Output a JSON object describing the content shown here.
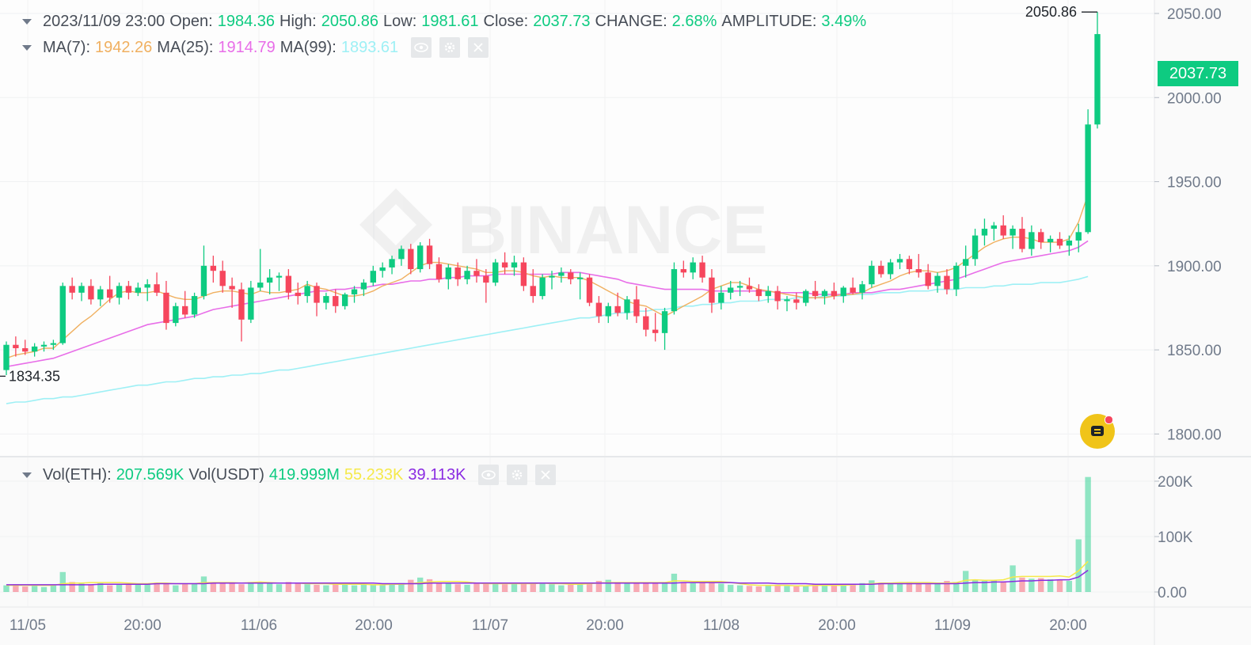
{
  "brand_watermark": "BINANCE",
  "ohlc": {
    "datetime": "2023/11/09 23:00",
    "open_label": "Open:",
    "open": "1984.36",
    "high_label": "High:",
    "high": "2050.86",
    "low_label": "Low:",
    "low": "1981.61",
    "close_label": "Close:",
    "close": "2037.73",
    "change_label": "CHANGE:",
    "change": "2.68%",
    "amp_label": "AMPLITUDE:",
    "amp": "3.49%"
  },
  "ma": {
    "ma7_label": "MA(7):",
    "ma7": "1942.26",
    "ma25_label": "MA(25):",
    "ma25": "1914.79",
    "ma99_label": "MA(99):",
    "ma99": "1893.61"
  },
  "vol": {
    "eth_label": "Vol(ETH):",
    "eth": "207.569K",
    "usdt_label": "Vol(USDT)",
    "usdt": "419.999M",
    "ma1": "55.233K",
    "ma2": "39.113K"
  },
  "markers": {
    "high_label": "2050.86",
    "low_label": "1834.35",
    "last_price": "2037.73"
  },
  "colors": {
    "up": "#0ecb81",
    "down": "#f6465d",
    "ma7": "#f0b060",
    "ma25": "#e86ee8",
    "ma99": "#9ef0f5",
    "vol_ma1": "#f5e94a",
    "vol_ma2": "#8a2be2"
  },
  "icons": [
    "eye-icon",
    "gear-icon",
    "close-icon",
    "chat-icon"
  ],
  "chart_data": {
    "type": "candlestick",
    "price_ticks": [
      "2050.00",
      "2000.00",
      "1950.00",
      "1900.00",
      "1850.00",
      "1800.00"
    ],
    "volume_ticks": [
      "200K",
      "100K",
      "0.00"
    ],
    "x_ticks": [
      "11/05",
      "20:00",
      "11/06",
      "20:00",
      "11/07",
      "20:00",
      "11/08",
      "20:00",
      "11/09",
      "20:00"
    ],
    "price_range": [
      1787,
      2058
    ],
    "volume_range": [
      0,
      230000
    ],
    "candles_ohlc": [
      [
        1838,
        1855,
        1835,
        1853
      ],
      [
        1853,
        1858,
        1846,
        1851
      ],
      [
        1851,
        1856,
        1847,
        1849
      ],
      [
        1849,
        1854,
        1846,
        1852
      ],
      [
        1852,
        1855,
        1849,
        1853
      ],
      [
        1853,
        1856,
        1850,
        1854
      ],
      [
        1854,
        1890,
        1853,
        1888
      ],
      [
        1888,
        1893,
        1880,
        1884
      ],
      [
        1884,
        1890,
        1879,
        1888
      ],
      [
        1888,
        1892,
        1877,
        1880
      ],
      [
        1880,
        1888,
        1876,
        1886
      ],
      [
        1886,
        1894,
        1878,
        1881
      ],
      [
        1881,
        1890,
        1877,
        1888
      ],
      [
        1888,
        1891,
        1880,
        1884
      ],
      [
        1884,
        1890,
        1882,
        1887
      ],
      [
        1887,
        1892,
        1879,
        1889
      ],
      [
        1889,
        1896,
        1882,
        1884
      ],
      [
        1884,
        1891,
        1862,
        1866
      ],
      [
        1866,
        1878,
        1864,
        1876
      ],
      [
        1876,
        1885,
        1869,
        1871
      ],
      [
        1871,
        1884,
        1869,
        1882
      ],
      [
        1882,
        1912,
        1880,
        1900
      ],
      [
        1900,
        1906,
        1890,
        1897
      ],
      [
        1897,
        1903,
        1884,
        1888
      ],
      [
        1888,
        1893,
        1875,
        1886
      ],
      [
        1886,
        1890,
        1855,
        1868
      ],
      [
        1868,
        1891,
        1866,
        1887
      ],
      [
        1887,
        1910,
        1885,
        1890
      ],
      [
        1890,
        1898,
        1883,
        1893
      ],
      [
        1893,
        1896,
        1885,
        1894
      ],
      [
        1894,
        1898,
        1880,
        1884
      ],
      [
        1884,
        1890,
        1877,
        1882
      ],
      [
        1882,
        1891,
        1878,
        1888
      ],
      [
        1888,
        1890,
        1870,
        1878
      ],
      [
        1878,
        1884,
        1874,
        1882
      ],
      [
        1882,
        1886,
        1872,
        1876
      ],
      [
        1876,
        1884,
        1874,
        1883
      ],
      [
        1883,
        1888,
        1878,
        1886
      ],
      [
        1886,
        1892,
        1882,
        1890
      ],
      [
        1890,
        1900,
        1888,
        1897
      ],
      [
        1897,
        1902,
        1893,
        1899
      ],
      [
        1899,
        1906,
        1895,
        1904
      ],
      [
        1904,
        1912,
        1900,
        1910
      ],
      [
        1910,
        1913,
        1895,
        1898
      ],
      [
        1898,
        1914,
        1896,
        1912
      ],
      [
        1912,
        1916,
        1898,
        1901
      ],
      [
        1901,
        1905,
        1890,
        1892
      ],
      [
        1892,
        1901,
        1886,
        1899
      ],
      [
        1899,
        1902,
        1888,
        1892
      ],
      [
        1892,
        1900,
        1889,
        1897
      ],
      [
        1897,
        1904,
        1890,
        1894
      ],
      [
        1894,
        1898,
        1878,
        1890
      ],
      [
        1890,
        1904,
        1888,
        1902
      ],
      [
        1902,
        1908,
        1895,
        1899
      ],
      [
        1899,
        1906,
        1894,
        1902
      ],
      [
        1902,
        1905,
        1885,
        1888
      ],
      [
        1888,
        1898,
        1878,
        1882
      ],
      [
        1882,
        1895,
        1880,
        1893
      ],
      [
        1893,
        1897,
        1886,
        1894
      ],
      [
        1894,
        1899,
        1890,
        1896
      ],
      [
        1896,
        1898,
        1889,
        1892
      ],
      [
        1892,
        1896,
        1880,
        1893
      ],
      [
        1893,
        1895,
        1876,
        1878
      ],
      [
        1878,
        1882,
        1866,
        1870
      ],
      [
        1870,
        1878,
        1866,
        1876
      ],
      [
        1876,
        1884,
        1870,
        1872
      ],
      [
        1872,
        1882,
        1868,
        1880
      ],
      [
        1880,
        1888,
        1866,
        1870
      ],
      [
        1870,
        1875,
        1858,
        1862
      ],
      [
        1862,
        1872,
        1855,
        1860
      ],
      [
        1860,
        1875,
        1850,
        1873
      ],
      [
        1873,
        1902,
        1871,
        1898
      ],
      [
        1898,
        1903,
        1893,
        1896
      ],
      [
        1896,
        1905,
        1892,
        1902
      ],
      [
        1902,
        1906,
        1890,
        1893
      ],
      [
        1893,
        1898,
        1872,
        1878
      ],
      [
        1878,
        1888,
        1874,
        1884
      ],
      [
        1884,
        1891,
        1880,
        1887
      ],
      [
        1887,
        1891,
        1882,
        1888
      ],
      [
        1888,
        1893,
        1884,
        1886
      ],
      [
        1886,
        1889,
        1879,
        1882
      ],
      [
        1882,
        1888,
        1878,
        1885
      ],
      [
        1885,
        1888,
        1874,
        1879
      ],
      [
        1879,
        1882,
        1873,
        1880
      ],
      [
        1880,
        1884,
        1874,
        1878
      ],
      [
        1878,
        1886,
        1876,
        1885
      ],
      [
        1885,
        1891,
        1880,
        1882
      ],
      [
        1882,
        1886,
        1877,
        1885
      ],
      [
        1885,
        1890,
        1880,
        1882
      ],
      [
        1882,
        1888,
        1878,
        1887
      ],
      [
        1887,
        1893,
        1883,
        1884
      ],
      [
        1884,
        1891,
        1880,
        1889
      ],
      [
        1889,
        1903,
        1887,
        1900
      ],
      [
        1900,
        1903,
        1893,
        1895
      ],
      [
        1895,
        1904,
        1892,
        1902
      ],
      [
        1902,
        1907,
        1898,
        1904
      ],
      [
        1904,
        1906,
        1895,
        1898
      ],
      [
        1898,
        1907,
        1893,
        1896
      ],
      [
        1896,
        1901,
        1886,
        1888
      ],
      [
        1888,
        1896,
        1884,
        1894
      ],
      [
        1894,
        1898,
        1883,
        1886
      ],
      [
        1886,
        1902,
        1882,
        1900
      ],
      [
        1900,
        1912,
        1893,
        1904
      ],
      [
        1904,
        1922,
        1900,
        1918
      ],
      [
        1918,
        1928,
        1912,
        1922
      ],
      [
        1922,
        1926,
        1915,
        1924
      ],
      [
        1924,
        1930,
        1916,
        1918
      ],
      [
        1918,
        1924,
        1910,
        1922
      ],
      [
        1922,
        1929,
        1908,
        1910
      ],
      [
        1910,
        1924,
        1906,
        1920
      ],
      [
        1920,
        1922,
        1910,
        1914
      ],
      [
        1914,
        1918,
        1908,
        1916
      ],
      [
        1916,
        1920,
        1910,
        1912
      ],
      [
        1912,
        1918,
        1906,
        1915
      ],
      [
        1915,
        1925,
        1908,
        1920
      ],
      [
        1920,
        1993,
        1919,
        1984
      ],
      [
        1984,
        2050.86,
        1981.61,
        2037.73
      ]
    ],
    "volumes_k": [
      12,
      14,
      10,
      11,
      9,
      12,
      36,
      18,
      15,
      14,
      16,
      12,
      14,
      13,
      15,
      14,
      17,
      16,
      12,
      14,
      15,
      28,
      17,
      15,
      16,
      14,
      18,
      16,
      15,
      14,
      18,
      16,
      14,
      13,
      12,
      14,
      15,
      12,
      13,
      14,
      13,
      15,
      16,
      22,
      26,
      23,
      16,
      15,
      14,
      13,
      15,
      17,
      16,
      14,
      15,
      16,
      17,
      15,
      14,
      12,
      13,
      15,
      16,
      20,
      22,
      18,
      16,
      17,
      15,
      16,
      18,
      33,
      18,
      16,
      18,
      17,
      15,
      13,
      12,
      11,
      10,
      12,
      13,
      11,
      10,
      12,
      14,
      13,
      12,
      14,
      15,
      16,
      21,
      17,
      15,
      16,
      18,
      15,
      14,
      16,
      20,
      18,
      38,
      22,
      20,
      22,
      19,
      48,
      26,
      24,
      25,
      23,
      22,
      20,
      95,
      207.569
    ],
    "ma7": [
      1845,
      1847,
      1848,
      1849,
      1851,
      1851,
      1856,
      1861,
      1866,
      1870,
      1875,
      1880,
      1884,
      1885,
      1884,
      1884,
      1885,
      1883,
      1881,
      1880,
      1880,
      1882,
      1884,
      1885,
      1885,
      1884,
      1883,
      1885,
      1884,
      1884,
      1885,
      1886,
      1889,
      1887,
      1886,
      1884,
      1882,
      1882,
      1883,
      1885,
      1888,
      1890,
      1892,
      1896,
      1900,
      1902,
      1902,
      1901,
      1900,
      1899,
      1898,
      1896,
      1896,
      1897,
      1897,
      1896,
      1894,
      1893,
      1894,
      1893,
      1893,
      1893,
      1891,
      1888,
      1885,
      1882,
      1879,
      1877,
      1876,
      1873,
      1870,
      1873,
      1876,
      1879,
      1882,
      1886,
      1888,
      1890,
      1890,
      1888,
      1886,
      1885,
      1884,
      1883,
      1882,
      1881,
      1881,
      1881,
      1882,
      1883,
      1883,
      1884,
      1887,
      1889,
      1891,
      1894,
      1896,
      1897,
      1897,
      1896,
      1897,
      1899,
      1903,
      1907,
      1911,
      1914,
      1916,
      1917,
      1917,
      1916,
      1914,
      1914,
      1914,
      1916,
      1926,
      1942.26
    ],
    "ma25": [
      1840,
      1841,
      1842,
      1843,
      1844,
      1845,
      1847,
      1849,
      1851,
      1853,
      1855,
      1857,
      1859,
      1861,
      1863,
      1865,
      1866,
      1867,
      1868,
      1869,
      1870,
      1872,
      1874,
      1875,
      1876,
      1877,
      1878,
      1879,
      1880,
      1881,
      1882,
      1883,
      1884,
      1885,
      1885,
      1886,
      1886,
      1887,
      1887,
      1888,
      1889,
      1889,
      1890,
      1891,
      1891,
      1892,
      1892,
      1893,
      1893,
      1894,
      1894,
      1894,
      1895,
      1895,
      1895,
      1895,
      1895,
      1895,
      1895,
      1896,
      1896,
      1896,
      1895,
      1894,
      1893,
      1892,
      1890,
      1889,
      1888,
      1887,
      1886,
      1886,
      1886,
      1886,
      1886,
      1885,
      1885,
      1885,
      1885,
      1885,
      1885,
      1885,
      1884,
      1884,
      1884,
      1884,
      1883,
      1883,
      1883,
      1883,
      1884,
      1884,
      1884,
      1885,
      1886,
      1886,
      1887,
      1888,
      1889,
      1890,
      1891,
      1892,
      1894,
      1896,
      1898,
      1900,
      1902,
      1903,
      1904,
      1905,
      1906,
      1907,
      1908,
      1909,
      1911,
      1914.79
    ],
    "ma99": [
      1818,
      1819,
      1819,
      1820,
      1821,
      1821,
      1822,
      1822,
      1823,
      1824,
      1825,
      1826,
      1827,
      1828,
      1829,
      1829,
      1830,
      1831,
      1831,
      1832,
      1833,
      1833,
      1834,
      1834,
      1835,
      1835,
      1836,
      1836,
      1837,
      1838,
      1838,
      1839,
      1840,
      1841,
      1842,
      1843,
      1844,
      1845,
      1846,
      1847,
      1848,
      1849,
      1850,
      1851,
      1852,
      1853,
      1854,
      1855,
      1856,
      1857,
      1858,
      1859,
      1860,
      1861,
      1862,
      1863,
      1864,
      1865,
      1866,
      1867,
      1868,
      1869,
      1869,
      1870,
      1871,
      1872,
      1872,
      1873,
      1873,
      1874,
      1874,
      1875,
      1876,
      1876,
      1877,
      1877,
      1878,
      1878,
      1879,
      1879,
      1879,
      1880,
      1880,
      1880,
      1881,
      1881,
      1881,
      1882,
      1882,
      1882,
      1883,
      1883,
      1883,
      1884,
      1884,
      1884,
      1885,
      1885,
      1885,
      1886,
      1886,
      1886,
      1887,
      1887,
      1887,
      1888,
      1888,
      1889,
      1889,
      1889,
      1890,
      1890,
      1890,
      1891,
      1892,
      1893.61
    ],
    "vol_ma1_k": [
      12,
      12,
      12,
      12,
      12,
      12,
      15,
      16,
      16,
      17,
      17,
      17,
      17,
      16,
      15,
      15,
      16,
      16,
      15,
      15,
      15,
      17,
      17,
      17,
      17,
      16,
      17,
      18,
      17,
      16,
      16,
      16,
      15,
      15,
      15,
      14,
      14,
      14,
      14,
      13,
      13,
      14,
      14,
      15,
      17,
      18,
      19,
      19,
      19,
      18,
      16,
      15,
      15,
      15,
      15,
      15,
      15,
      16,
      15,
      15,
      14,
      14,
      15,
      16,
      17,
      17,
      17,
      17,
      17,
      17,
      17,
      20,
      20,
      19,
      19,
      19,
      19,
      17,
      15,
      13,
      12,
      12,
      12,
      12,
      11,
      11,
      12,
      12,
      12,
      12,
      13,
      14,
      15,
      16,
      16,
      17,
      17,
      17,
      17,
      16,
      16,
      17,
      21,
      22,
      21,
      21,
      22,
      27,
      28,
      28,
      28,
      28,
      29,
      27,
      38,
      55.233
    ],
    "vol_ma2_k": [
      13,
      13,
      13,
      13,
      13,
      13,
      13,
      13,
      13,
      13,
      14,
      14,
      14,
      14,
      14,
      14,
      15,
      15,
      15,
      15,
      15,
      15,
      16,
      16,
      16,
      16,
      16,
      16,
      16,
      16,
      16,
      16,
      16,
      16,
      16,
      16,
      16,
      16,
      16,
      16,
      15,
      15,
      15,
      15,
      15,
      16,
      16,
      16,
      16,
      16,
      16,
      16,
      16,
      16,
      16,
      16,
      16,
      16,
      16,
      16,
      16,
      16,
      16,
      16,
      16,
      16,
      16,
      16,
      16,
      16,
      16,
      16,
      17,
      17,
      17,
      17,
      17,
      17,
      16,
      16,
      16,
      16,
      15,
      15,
      15,
      15,
      14,
      14,
      14,
      14,
      14,
      14,
      14,
      15,
      15,
      15,
      15,
      15,
      15,
      15,
      15,
      15,
      16,
      17,
      17,
      18,
      18,
      19,
      20,
      20,
      21,
      21,
      22,
      22,
      27,
      39.113
    ]
  }
}
